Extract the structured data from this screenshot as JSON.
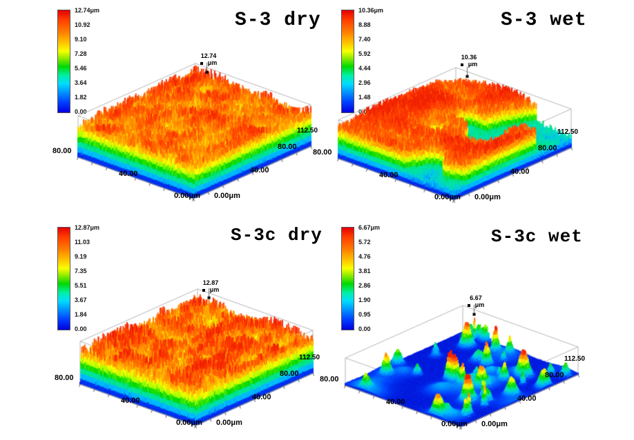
{
  "colors": {
    "background": "#ffffff",
    "wireframe": "#b0b0b0",
    "axis_edge": "#808080",
    "text": "#000000",
    "colormap_low_to_high": [
      "#0000dc",
      "#0040ff",
      "#00dcff",
      "#00f0a8",
      "#00d800",
      "#f8ff00",
      "#ffc400",
      "#ff7c00",
      "#ff3c00",
      "#e60000"
    ]
  },
  "chart_data": [
    {
      "id": "s3-dry",
      "type": "heatmap",
      "title": "S-3 dry",
      "z_unit": "μm",
      "z_max": 12.74,
      "peak": {
        "value": "12.74",
        "unit": "μm"
      },
      "colorbar_ticks": [
        "12.74μm",
        "10.92",
        "9.10",
        "7.28",
        "5.46",
        "3.64",
        "1.82",
        "0.00"
      ],
      "x_axis": {
        "ticks": [
          "0.00μm",
          "40.00",
          "80.00",
          "112.50"
        ],
        "range_um": [
          0,
          112.5
        ]
      },
      "y_axis": {
        "ticks": [
          "80.00",
          "40.00",
          "0.00μm"
        ],
        "range_um": [
          0,
          90
        ]
      },
      "surface_description": "dense narrow spikes; plateau around 9-12.7 μm (orange-red) with scattered narrow pits reaching 0 μm (green/cyan/blue)"
    },
    {
      "id": "s3-wet",
      "type": "heatmap",
      "title": "S-3 wet",
      "z_unit": "μm",
      "z_max": 10.36,
      "peak": {
        "value": "10.36",
        "unit": "μm"
      },
      "colorbar_ticks": [
        "10.36μm",
        "8.88",
        "7.40",
        "5.92",
        "4.44",
        "2.96",
        "1.48",
        "0.00"
      ],
      "x_axis": {
        "ticks": [
          "0.00μm",
          "40.00",
          "80.00",
          "112.50"
        ],
        "range_um": [
          0,
          112.5
        ]
      },
      "y_axis": {
        "ticks": [
          "80.00",
          "40.00",
          "0.00μm"
        ],
        "range_um": [
          0,
          90
        ]
      },
      "surface_description": "coarse blocky orange-red plateau around 8-10.4 μm broken by wide deep pits and trenches reaching 0 μm"
    },
    {
      "id": "s3c-dry",
      "type": "heatmap",
      "title": "S-3c dry",
      "z_unit": "μm",
      "z_max": 12.87,
      "peak": {
        "value": "12.87",
        "unit": "μm"
      },
      "colorbar_ticks": [
        "12.87μm",
        "11.03",
        "9.19",
        "7.35",
        "5.51",
        "3.67",
        "1.84",
        "0.00"
      ],
      "x_axis": {
        "ticks": [
          "0.00μm",
          "40.00",
          "80.00",
          "112.50"
        ],
        "range_um": [
          0,
          112.5
        ]
      },
      "y_axis": {
        "ticks": [
          "80.00",
          "40.00",
          "0.00μm"
        ],
        "range_um": [
          0,
          90
        ]
      },
      "surface_description": "very dense tall spikes; orange-red tops around 9-12.9 μm with many deep narrow valleys showing green, cyan and blue"
    },
    {
      "id": "s3c-wet",
      "type": "heatmap",
      "title": "S-3c wet",
      "z_unit": "μm",
      "z_max": 6.67,
      "peak": {
        "value": "6.67",
        "unit": "μm"
      },
      "colorbar_ticks": [
        "6.67μm",
        "5.72",
        "4.76",
        "3.81",
        "2.86",
        "1.90",
        "0.95",
        "0.00"
      ],
      "x_axis": {
        "ticks": [
          "0.00μm",
          "40.00",
          "80.00",
          "112.50"
        ],
        "range_um": [
          0,
          112.5
        ]
      },
      "y_axis": {
        "ticks": [
          "80.00",
          "40.00",
          "0.00μm"
        ],
        "range_um": [
          0,
          90
        ]
      },
      "surface_description": "flat deep-blue floor near 0 μm with sparse isolated sharp peaks up to 6.67 μm (cyan/green/yellow/red tips)"
    }
  ]
}
